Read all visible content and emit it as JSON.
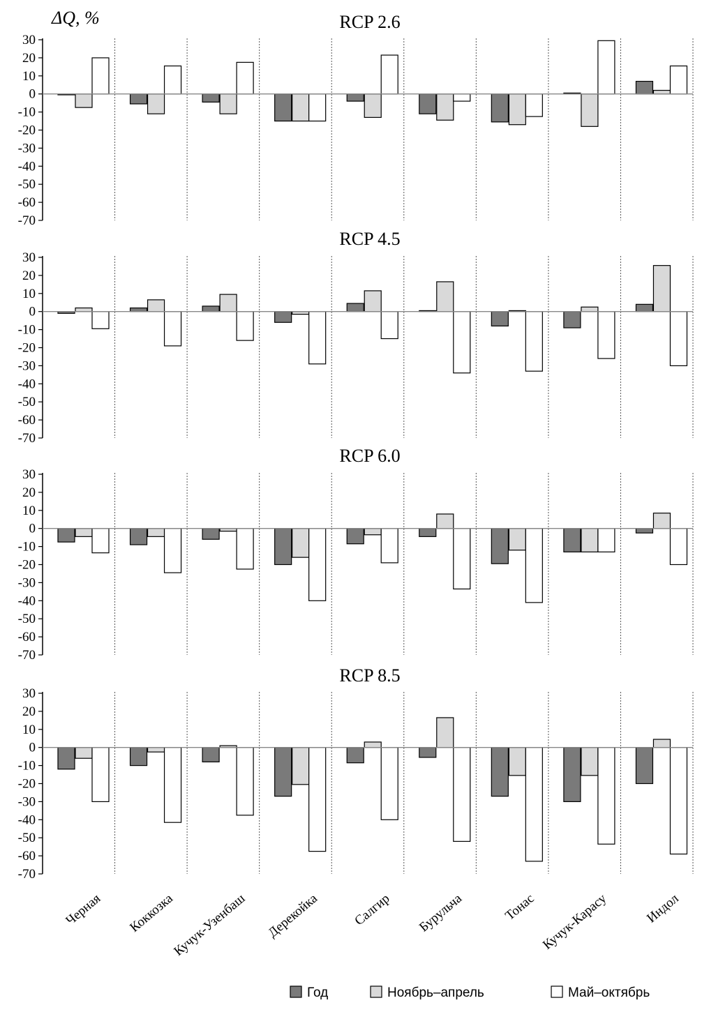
{
  "chart_data": {
    "type": "bar",
    "ylabel": "ΔQ, %",
    "ylim": [
      -70,
      30
    ],
    "yticks": [
      30,
      20,
      10,
      0,
      -10,
      -20,
      -30,
      -40,
      -50,
      -60,
      -70
    ],
    "categories": [
      "Черная",
      "Коккозка",
      "Кучук-Узенбаш",
      "Дерекойка",
      "Салгир",
      "Бурульча",
      "Тонас",
      "Кучук-Карасу",
      "Индол"
    ],
    "series_names": [
      "Год",
      "Ноябрь–апрель",
      "Май–октябрь"
    ],
    "colors": {
      "year": "#7a7a7a",
      "winter": "#d9d9d9",
      "summer": "#ffffff",
      "stroke": "#000000",
      "divider": "#555555"
    },
    "panels": [
      {
        "title": "RCP 2.6",
        "series": [
          {
            "name": "Год",
            "values": [
              -0.5,
              -5.5,
              -4.5,
              -15,
              -4,
              -11,
              -15.5,
              0.5,
              7
            ]
          },
          {
            "name": "Ноябрь–апрель",
            "values": [
              -7.5,
              -11,
              -11,
              -15,
              -13,
              -14.5,
              -17,
              -18,
              2
            ]
          },
          {
            "name": "Май–октябрь",
            "values": [
              20,
              15.5,
              17.5,
              -15,
              21.5,
              -4,
              -12.5,
              29.5,
              15.5
            ]
          }
        ]
      },
      {
        "title": "RCP 4.5",
        "series": [
          {
            "name": "Год",
            "values": [
              -1,
              2,
              3,
              -6,
              4.5,
              0.5,
              -8,
              -9,
              4
            ]
          },
          {
            "name": "Ноябрь–апрель",
            "values": [
              2,
              6.5,
              9.5,
              -1.5,
              11.5,
              16.5,
              0.5,
              2.5,
              25.5
            ]
          },
          {
            "name": "Май–октябрь",
            "values": [
              -9.5,
              -19,
              -16,
              -29,
              -15,
              -34,
              -33,
              -26,
              -30
            ]
          }
        ]
      },
      {
        "title": "RCP 6.0",
        "series": [
          {
            "name": "Год",
            "values": [
              -7.5,
              -9,
              -6,
              -20,
              -8.5,
              -4.5,
              -19.5,
              -13,
              -2.5
            ]
          },
          {
            "name": "Ноябрь–апрель",
            "values": [
              -4.5,
              -4.5,
              -1.5,
              -16,
              -3.5,
              8,
              -12,
              -13,
              8.5
            ]
          },
          {
            "name": "Май–октябрь",
            "values": [
              -13.5,
              -24.5,
              -22.5,
              -40,
              -19,
              -33.5,
              -41,
              -13,
              -20
            ]
          }
        ]
      },
      {
        "title": "RCP 8.5",
        "series": [
          {
            "name": "Год",
            "values": [
              -12,
              -10,
              -8,
              -27,
              -8.5,
              -5.5,
              -27,
              -30,
              -20
            ]
          },
          {
            "name": "Ноябрь–апрель",
            "values": [
              -6,
              -2.5,
              1,
              -20.5,
              3,
              16.5,
              -15.5,
              -15.5,
              4.5
            ]
          },
          {
            "name": "Май–октябрь",
            "values": [
              -30,
              -41.5,
              -37.5,
              -57.5,
              -40,
              -52,
              -63,
              -53.5,
              -59
            ]
          }
        ]
      }
    ],
    "legend": {
      "position": "bottom-right",
      "entries": [
        "Год",
        "Ноябрь–апрель",
        "Май–октябрь"
      ]
    }
  }
}
